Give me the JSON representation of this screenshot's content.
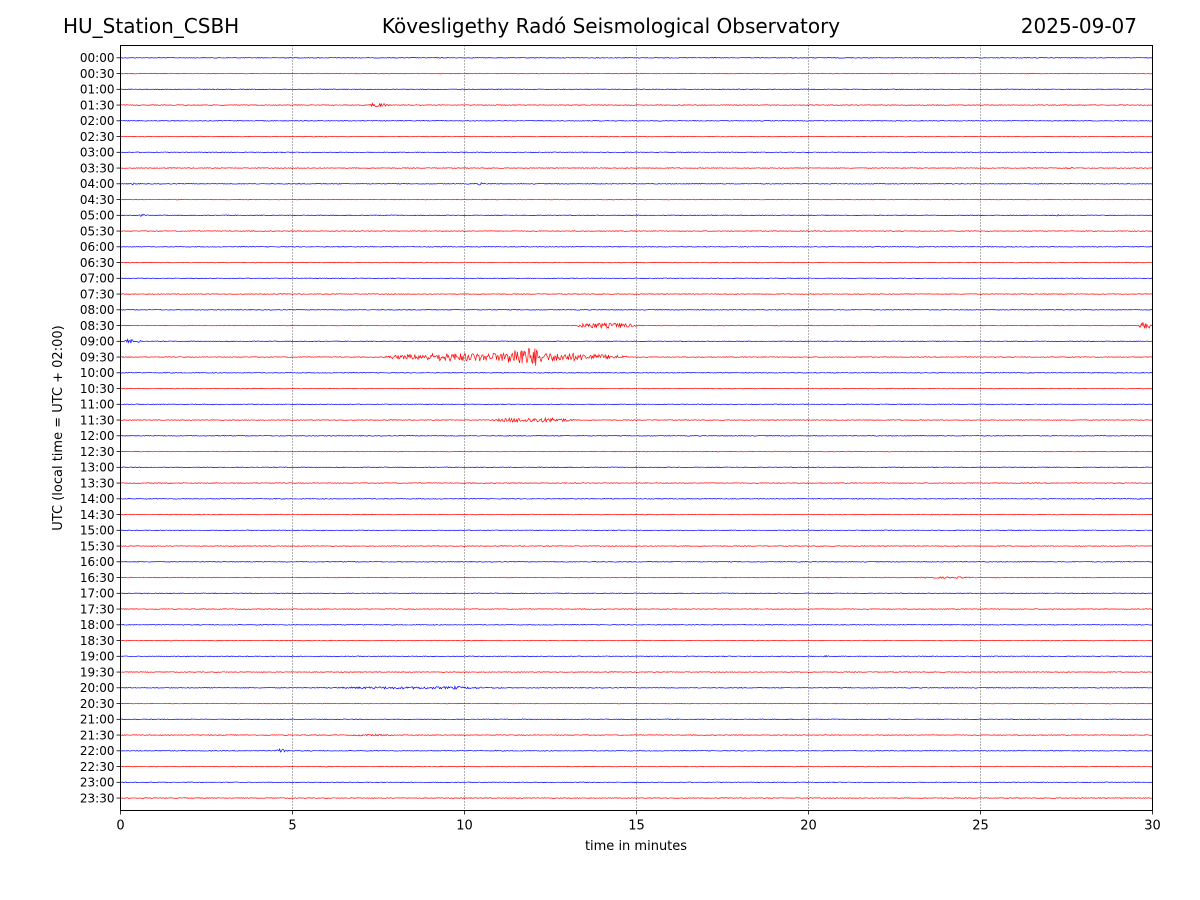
{
  "header": {
    "station": "HU_Station_CSBH",
    "title": "Kövesligethy Radó Seismological Observatory",
    "date": "2025-09-07"
  },
  "chart_data": {
    "type": "line",
    "title": "Kövesligethy Radó Seismological Observatory",
    "xlabel": "time in minutes",
    "ylabel": "UTC (local time = UTC + 02:00)",
    "xlim": [
      0,
      30
    ],
    "x_ticks": [
      "0",
      "5",
      "10",
      "15",
      "20",
      "25",
      "30"
    ],
    "grid": "vertical dotted lines at x = 5, 10, 15, 20, 25",
    "trace_colors": [
      "#0000ff",
      "#ff0000"
    ],
    "rows": [
      {
        "label": "00:00",
        "color": "#0000ff",
        "events": []
      },
      {
        "label": "00:30",
        "color": "#ff0000",
        "events": []
      },
      {
        "label": "01:00",
        "color": "#0000ff",
        "events": []
      },
      {
        "label": "01:30",
        "color": "#ff0000",
        "events": [
          {
            "start": 7.2,
            "end": 7.8,
            "amp": 0.25
          }
        ]
      },
      {
        "label": "02:00",
        "color": "#0000ff",
        "events": []
      },
      {
        "label": "02:30",
        "color": "#ff0000",
        "events": []
      },
      {
        "label": "03:00",
        "color": "#0000ff",
        "events": []
      },
      {
        "label": "03:30",
        "color": "#ff0000",
        "events": [
          {
            "start": 27.3,
            "end": 27.8,
            "amp": 0.1
          }
        ]
      },
      {
        "label": "04:00",
        "color": "#0000ff",
        "events": [
          {
            "start": 0.3,
            "end": 0.5,
            "amp": 0.15
          },
          {
            "start": 10.3,
            "end": 10.6,
            "amp": 0.15
          }
        ]
      },
      {
        "label": "04:30",
        "color": "#ff0000",
        "events": []
      },
      {
        "label": "05:00",
        "color": "#0000ff",
        "events": [
          {
            "start": 0.2,
            "end": 0.8,
            "amp": 0.12
          },
          {
            "start": 27.1,
            "end": 27.3,
            "amp": 0.12
          }
        ]
      },
      {
        "label": "05:30",
        "color": "#ff0000",
        "events": []
      },
      {
        "label": "06:00",
        "color": "#0000ff",
        "events": []
      },
      {
        "label": "06:30",
        "color": "#ff0000",
        "events": []
      },
      {
        "label": "07:00",
        "color": "#0000ff",
        "events": []
      },
      {
        "label": "07:30",
        "color": "#ff0000",
        "events": []
      },
      {
        "label": "08:00",
        "color": "#0000ff",
        "events": []
      },
      {
        "label": "08:30",
        "color": "#ff0000",
        "events": [
          {
            "start": 13.2,
            "end": 15.0,
            "amp": 0.35
          },
          {
            "start": 29.6,
            "end": 30.0,
            "amp": 0.45
          }
        ]
      },
      {
        "label": "09:00",
        "color": "#0000ff",
        "events": [
          {
            "start": 0.0,
            "end": 0.6,
            "amp": 0.25
          }
        ]
      },
      {
        "label": "09:30",
        "color": "#ff0000",
        "events": [
          {
            "start": 7.7,
            "end": 14.7,
            "amp": 0.55
          },
          {
            "start": 11.1,
            "end": 12.4,
            "amp": 1.25
          }
        ]
      },
      {
        "label": "10:00",
        "color": "#0000ff",
        "events": []
      },
      {
        "label": "10:30",
        "color": "#ff0000",
        "events": []
      },
      {
        "label": "11:00",
        "color": "#0000ff",
        "events": []
      },
      {
        "label": "11:30",
        "color": "#ff0000",
        "events": [
          {
            "start": 10.8,
            "end": 13.2,
            "amp": 0.3
          }
        ]
      },
      {
        "label": "12:00",
        "color": "#0000ff",
        "events": []
      },
      {
        "label": "12:30",
        "color": "#ff0000",
        "events": []
      },
      {
        "label": "13:00",
        "color": "#0000ff",
        "events": []
      },
      {
        "label": "13:30",
        "color": "#ff0000",
        "events": []
      },
      {
        "label": "14:00",
        "color": "#0000ff",
        "events": []
      },
      {
        "label": "14:30",
        "color": "#ff0000",
        "events": []
      },
      {
        "label": "15:00",
        "color": "#0000ff",
        "events": []
      },
      {
        "label": "15:30",
        "color": "#ff0000",
        "events": []
      },
      {
        "label": "16:00",
        "color": "#0000ff",
        "events": [
          {
            "start": 13.7,
            "end": 13.9,
            "amp": 0.1
          }
        ]
      },
      {
        "label": "16:30",
        "color": "#ff0000",
        "events": [
          {
            "start": 23.0,
            "end": 25.0,
            "amp": 0.1
          }
        ]
      },
      {
        "label": "17:00",
        "color": "#0000ff",
        "events": []
      },
      {
        "label": "17:30",
        "color": "#ff0000",
        "events": []
      },
      {
        "label": "18:00",
        "color": "#0000ff",
        "events": []
      },
      {
        "label": "18:30",
        "color": "#ff0000",
        "events": []
      },
      {
        "label": "19:00",
        "color": "#0000ff",
        "events": [
          {
            "start": 20.4,
            "end": 20.6,
            "amp": 0.12
          }
        ]
      },
      {
        "label": "19:30",
        "color": "#ff0000",
        "events": []
      },
      {
        "label": "20:00",
        "color": "#0000ff",
        "events": [
          {
            "start": 6.0,
            "end": 11.2,
            "amp": 0.15
          },
          {
            "start": 9.6,
            "end": 9.9,
            "amp": 0.22
          }
        ]
      },
      {
        "label": "20:30",
        "color": "#ff0000",
        "events": []
      },
      {
        "label": "21:00",
        "color": "#0000ff",
        "events": []
      },
      {
        "label": "21:30",
        "color": "#ff0000",
        "events": [
          {
            "start": 6.6,
            "end": 7.9,
            "amp": 0.12
          }
        ]
      },
      {
        "label": "22:00",
        "color": "#0000ff",
        "events": [
          {
            "start": 4.5,
            "end": 4.9,
            "amp": 0.25
          }
        ]
      },
      {
        "label": "22:30",
        "color": "#ff0000",
        "events": []
      },
      {
        "label": "23:00",
        "color": "#0000ff",
        "events": []
      },
      {
        "label": "23:30",
        "color": "#ff0000",
        "events": []
      }
    ]
  }
}
